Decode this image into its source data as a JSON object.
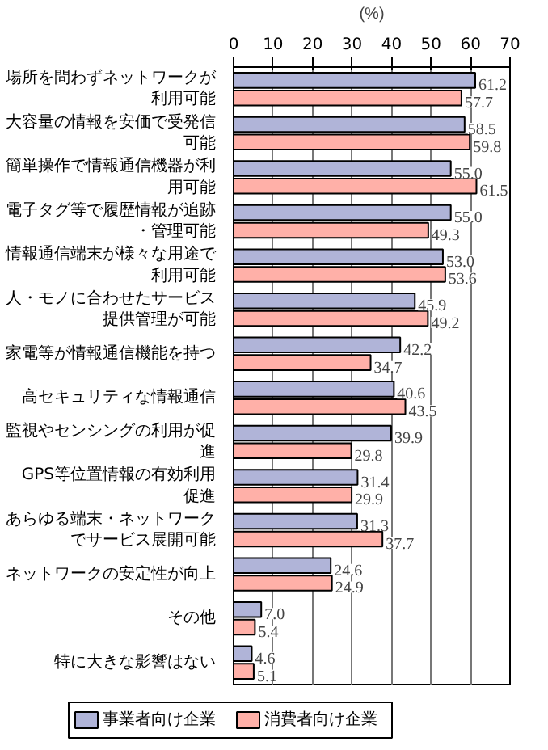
{
  "chart_data": {
    "type": "bar",
    "orientation": "horizontal",
    "xlabel": "(%)",
    "categories": [
      "場所を問わずネットワークが利用可能",
      "大容量の情報を安価で受発信可能",
      "簡単操作で情報通信機器が利用可能",
      "電子タグ等で履歴情報が追跡・管理可能",
      "情報通信端末が様々な用途で利用可能",
      "人・モノに合わせたサービス提供管理が可能",
      "家電等が情報通信機能を持つ",
      "高セキュリティな情報通信",
      "監視やセンシングの利用が促進",
      "GPS等位置情報の有効利用促進",
      "あらゆる端末・ネットワークでサービス展開可能",
      "ネットワークの安定性が向上",
      "その他",
      "特に大きな影響はない"
    ],
    "series": [
      {
        "name": "事業者向け企業",
        "color": "#b0b4d8",
        "values": [
          61.2,
          58.5,
          55.0,
          55.0,
          53.0,
          45.9,
          42.2,
          40.6,
          39.9,
          31.4,
          31.3,
          24.6,
          7.0,
          4.6
        ],
        "value_labels": [
          "61.2",
          "58.5",
          "55.0",
          "55.0",
          "53.0",
          "45.9",
          "42.2",
          "40.6",
          "39.9",
          "31.4",
          "31.3",
          "24.6",
          "7.0",
          "4.6"
        ]
      },
      {
        "name": "消費者向け企業",
        "color": "#ffb0a8",
        "values": [
          57.7,
          59.8,
          61.5,
          49.3,
          53.6,
          49.2,
          34.7,
          43.5,
          29.8,
          29.9,
          37.7,
          24.9,
          5.4,
          5.1
        ],
        "value_labels": [
          "57.7",
          "59.8",
          "61.5",
          "49.3",
          "53.6",
          "49.2",
          "34.7",
          "43.5",
          "29.8",
          "29.9",
          "37.7",
          "24.9",
          "5.4",
          "5.1"
        ]
      }
    ],
    "xlim": [
      0,
      70
    ],
    "xticks": [
      0,
      10,
      20,
      30,
      40,
      50,
      60,
      70
    ],
    "grid": "x",
    "legend": "bottom",
    "data_labels": true
  }
}
